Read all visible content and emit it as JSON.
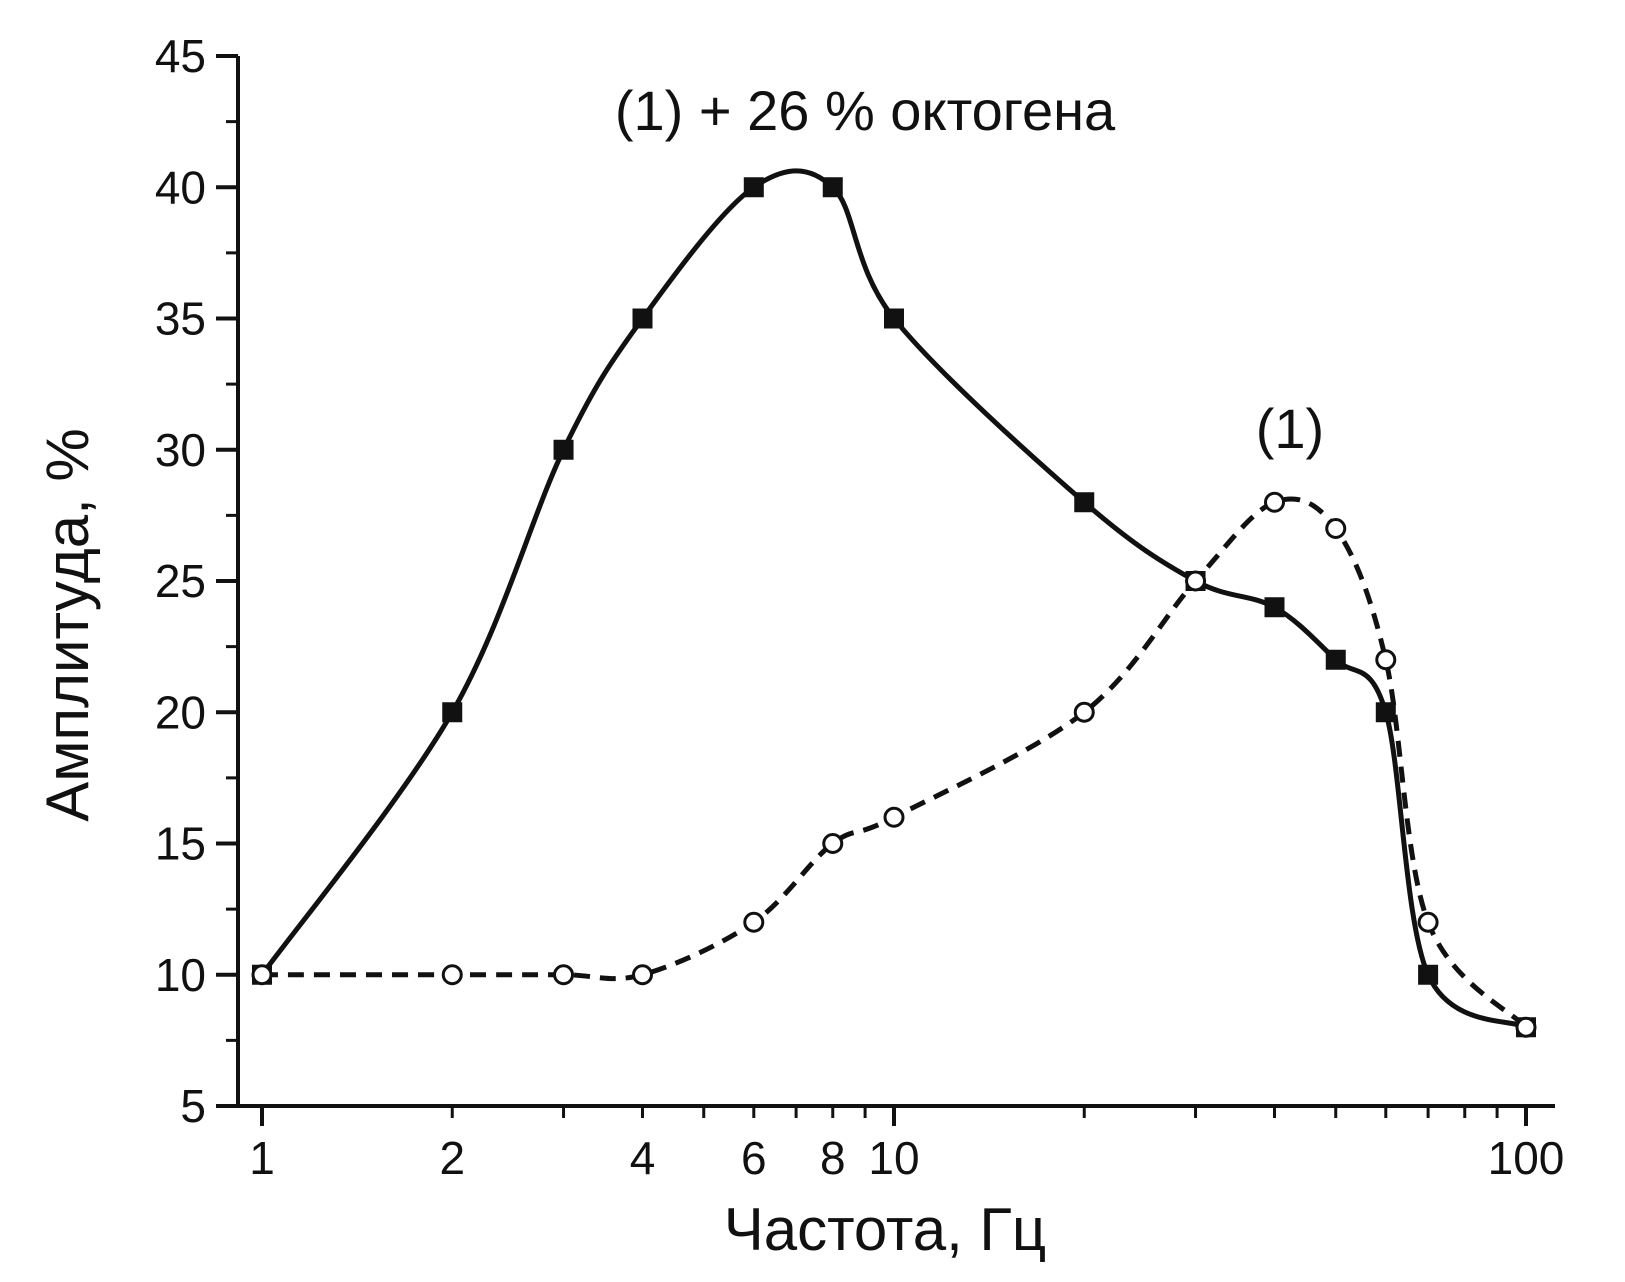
{
  "chart_data": {
    "type": "line",
    "xlabel": "Частота, Гц",
    "ylabel": "Амплитуда, %",
    "x_scale": "log",
    "xlim": [
      0.93,
      110
    ],
    "ylim": [
      5,
      45
    ],
    "x_ticks": [
      1,
      2,
      4,
      6,
      8,
      10,
      100
    ],
    "x_tick_labels": [
      "1",
      "2",
      "4",
      "6",
      "8",
      "10",
      "100"
    ],
    "y_ticks": [
      5,
      10,
      15,
      20,
      25,
      30,
      35,
      40,
      45
    ],
    "y_tick_labels": [
      "5",
      "10",
      "15",
      "20",
      "25",
      "30",
      "35",
      "40",
      "45"
    ],
    "grid": false,
    "legend": "none",
    "series": [
      {
        "name": "(1) + 26 % октогена",
        "marker": "filled-square",
        "line_style": "solid",
        "color": "#111111",
        "x": [
          1,
          2,
          3,
          4,
          6,
          8,
          10,
          20,
          30,
          40,
          50,
          60,
          70,
          100
        ],
        "y": [
          10,
          20,
          30,
          35,
          40,
          40,
          35,
          28,
          25,
          24,
          22,
          20,
          10,
          8
        ]
      },
      {
        "name": "(1)",
        "marker": "open-circle",
        "line_style": "dashed",
        "color": "#111111",
        "x": [
          1,
          2,
          3,
          4,
          6,
          8,
          10,
          20,
          30,
          40,
          50,
          60,
          70,
          100
        ],
        "y": [
          10,
          10,
          10,
          10,
          12,
          15,
          16,
          20,
          25,
          28,
          27,
          22,
          12,
          8
        ]
      }
    ],
    "annotations": [
      {
        "text": "(1) + 26 % октогена",
        "series": 0
      },
      {
        "text": "(1)",
        "series": 1
      }
    ]
  }
}
